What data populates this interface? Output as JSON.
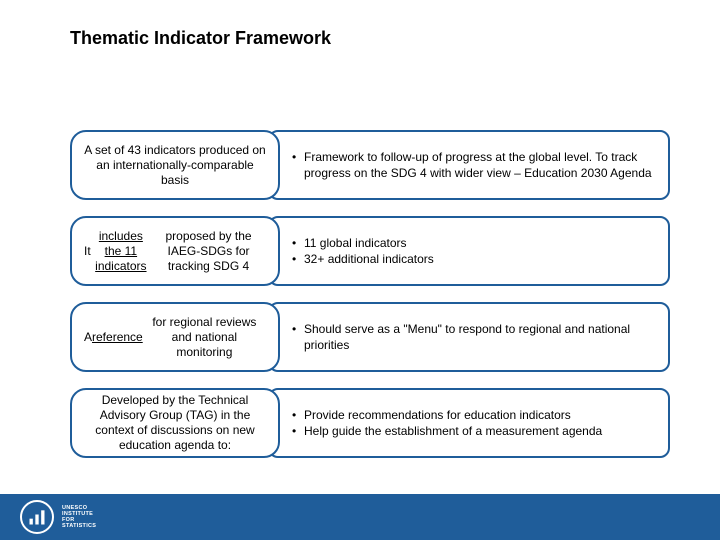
{
  "title": "Thematic Indicator Framework",
  "rows": [
    {
      "left_html": "A set of 43 indicators produced on an internationally-comparable basis",
      "bullets": [
        "Framework to follow-up of progress at the global level. To track progress on the SDG 4 with wider view – Education 2030 Agenda"
      ]
    },
    {
      "left_html": "It <span class=\"un\">includes the 11 indicators</span> proposed by the IAEG-SDGs for tracking SDG 4",
      "bullets": [
        "11 global indicators",
        "32+ additional indicators"
      ]
    },
    {
      "left_html": "A <span class=\"un\">reference</span> for regional reviews and national monitoring",
      "bullets": [
        "Should serve as a \"Menu\" to respond to regional and national priorities"
      ]
    },
    {
      "left_html": "Developed by the Technical Advisory Group (TAG) in the context of discussions on new education agenda to:",
      "bullets": [
        "Provide recommendations for education indicators",
        "Help guide the establishment of a measurement agenda"
      ]
    }
  ],
  "footer": {
    "line1": "UNESCO",
    "line2": "INSTITUTE",
    "line3": "FOR",
    "line4": "STATISTICS"
  },
  "colors": {
    "accent": "#1f5d9a",
    "background": "#ffffff",
    "text": "#000000",
    "footer_text": "#ffffff"
  }
}
